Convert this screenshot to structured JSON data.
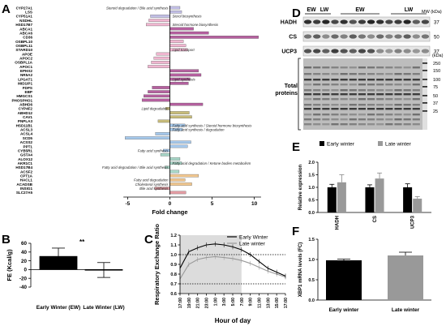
{
  "panels": {
    "A": "A",
    "B": "B",
    "C": "C",
    "D": "D",
    "E": "E",
    "F": "F"
  },
  "chart_data": [
    {
      "panel": "A",
      "type": "bar",
      "orientation": "horizontal",
      "xlabel": "Fold change",
      "xlim": [
        -6,
        11
      ],
      "xticks": [
        -5,
        0,
        5,
        10
      ],
      "genes": [
        "CYP27A1",
        "LSS",
        "CYP51A1",
        "NSDHL",
        "HSD17B7",
        "ABCA1",
        "ABCA6",
        "CD36",
        "OSBPL10",
        "OSBPL11",
        "STARD10",
        "APOE",
        "APOC2",
        "OSBPL1A",
        "APOC1",
        "EPHX2",
        "NR5A2",
        "LPGAT1",
        "MID1IP1",
        "FDPS",
        "EBP",
        "HMGCS1",
        "PHOSPHO1",
        "ABHD6",
        "CYP4F2",
        "ABHD12",
        "CAV1",
        "PNPLA3",
        "HSD11B1",
        "ACSL3",
        "ACSL4",
        "SCD5",
        "ACSS2",
        "PPT1",
        "CYB5R1",
        "GSTA4",
        "ALOX12",
        "AKR1C1",
        "HSD17B4",
        "ACSF2",
        "CPT1A",
        "HACL1",
        "ACADSB",
        "INSIG1",
        "SLC27A5"
      ],
      "values": [
        1.2,
        1.4,
        -2.3,
        -2.5,
        -2.8,
        2.8,
        4.6,
        10.5,
        1.6,
        1.9,
        2.1,
        -1.6,
        -1.9,
        -2.2,
        -2.6,
        3.4,
        3.7,
        2.4,
        2.2,
        -2.1,
        -2.6,
        -3.1,
        -3.3,
        3.9,
        -0.5,
        2.3,
        2.6,
        -1.4,
        1.8,
        1.5,
        -1.7,
        -5.3,
        2.5,
        2.1,
        -0.8,
        -1.1,
        1.2,
        1.4,
        -0.6,
        1.1,
        3.4,
        1.8,
        2.6,
        -1.8,
        1.9
      ],
      "pathway_labels": [
        {
          "text": "Steroid degradation / Bile acid synthesis",
          "side": "left",
          "gene": "CYP27A1"
        },
        {
          "text": "Sterol biosynthesis",
          "side": "right",
          "gene": "CYP51A1"
        },
        {
          "text": "Steroid hormone biosynthesis",
          "side": "right",
          "gene": "HSD17B7"
        },
        {
          "text": "Lipid transport",
          "side": "right",
          "gene": "STARD10"
        },
        {
          "text": "Lipid synthesis",
          "side": "right",
          "gene": "LPGAT1"
        },
        {
          "text": "Lipid degradation",
          "side": "left",
          "gene": "CYP4F2"
        },
        {
          "text": "Fatty acid synthesis / Steroid hormone biosynthesis",
          "side": "right",
          "gene": "HSD11B1"
        },
        {
          "text": "Fatty acid synthesis / degradation",
          "side": "right",
          "gene": "ACSL3"
        },
        {
          "text": "Fatty acid synthesis",
          "side": "left",
          "gene": "CYB5R1"
        },
        {
          "text": "Fatty acid degradation / Ketone bodies metabolism",
          "side": "right",
          "gene": "AKR1C1"
        },
        {
          "text": "Fatty acid degradation / Bile acid synthesis",
          "side": "left",
          "gene": "HSD17B4"
        },
        {
          "text": "Fatty acid degradation",
          "side": "left",
          "gene": "HACL1"
        },
        {
          "text": "Cholesterol synthesis",
          "side": "left",
          "gene": "ACADSB"
        },
        {
          "text": "Bile acid synthesis",
          "side": "left",
          "gene": "INSIG1"
        }
      ],
      "colors": {
        "lavender": "#c2bfe6",
        "pink": "#f0b6d0",
        "magenta": "#b5609f",
        "olive": "#c8bc7a",
        "mint": "#a8d7c8",
        "skyblue": "#a6c9ec",
        "peach": "#f3c88f",
        "salmon": "#e39ca3"
      }
    },
    {
      "panel": "B",
      "type": "bar",
      "ylabel": "FE (Kcal/g)",
      "ylim": [
        -40,
        60
      ],
      "yticks": [
        -40,
        -20,
        0,
        20,
        40,
        60
      ],
      "categories": [
        "Early Winter (EW)",
        "Late Winter (LW)"
      ],
      "values": [
        30,
        -1
      ],
      "errors": [
        19,
        17
      ],
      "significance": "**",
      "colors": [
        "#000000",
        "#ffffff"
      ]
    },
    {
      "panel": "C",
      "type": "line",
      "ylabel": "Respiratory Exchange Ratio",
      "xlabel": "Hour of day",
      "ylim": [
        0.6,
        1.2
      ],
      "yticks": [
        0.6,
        0.7,
        0.8,
        0.9,
        1.0,
        1.1,
        1.2
      ],
      "xticks": [
        "17:00",
        "19:00",
        "21:00",
        "23:00",
        "1:00",
        "3:00",
        "5:00",
        "7:00",
        "9:00",
        "11:00",
        "13:00",
        "15:00",
        "17:00"
      ],
      "dark_period": [
        "17:00",
        "7:00"
      ],
      "reference_lines": [
        1.0,
        0.7
      ],
      "series": [
        {
          "name": "Early Winter",
          "color": "#000000",
          "values": [
            0.86,
            1.03,
            1.07,
            1.1,
            1.11,
            1.1,
            1.08,
            1.05,
            1.0,
            0.93,
            0.86,
            0.82,
            0.78
          ]
        },
        {
          "name": "Late winter",
          "color": "#999999",
          "values": [
            0.75,
            0.9,
            0.95,
            0.97,
            0.98,
            0.97,
            0.96,
            0.94,
            0.91,
            0.87,
            0.83,
            0.8,
            0.77
          ]
        }
      ]
    },
    {
      "panel": "D",
      "type": "western_blot",
      "groups": [
        "EW",
        "LW",
        "EW",
        "LW"
      ],
      "mw_label": "MW (kDa)",
      "proteins": [
        {
          "name": "HADH",
          "mw": "37"
        },
        {
          "name": "CS",
          "mw": "50"
        },
        {
          "name": "UCP3",
          "mw": "37"
        }
      ],
      "total_label": "Total proteins",
      "total_mw_unit": "(kDa)",
      "total_markers": [
        "250",
        "150",
        "100",
        "75",
        "50",
        "37",
        "25"
      ]
    },
    {
      "panel": "E",
      "type": "bar",
      "ylabel": "Relative expression",
      "ylim": [
        0,
        2.0
      ],
      "yticks": [
        0.0,
        0.5,
        1.0,
        1.5,
        2.0
      ],
      "categories": [
        "HADH",
        "CS",
        "UCP3"
      ],
      "series": [
        {
          "name": "Early winter",
          "color": "#000000",
          "values": [
            1.0,
            1.0,
            1.0
          ],
          "errors": [
            0.12,
            0.1,
            0.14
          ]
        },
        {
          "name": "Late winter",
          "color": "#999999",
          "values": [
            1.2,
            1.35,
            0.55
          ],
          "errors": [
            0.3,
            0.22,
            0.08
          ]
        }
      ]
    },
    {
      "panel": "F",
      "type": "bar",
      "ylabel": "XBP1 mRNA levels (FC)",
      "ylim": [
        0.0,
        1.5
      ],
      "yticks": [
        0.0,
        0.5,
        1.0,
        1.5
      ],
      "categories": [
        "Early winter",
        "Late winter"
      ],
      "values": [
        0.98,
        1.1
      ],
      "errors": [
        0.03,
        0.08
      ],
      "colors": [
        "#000000",
        "#999999"
      ]
    }
  ]
}
